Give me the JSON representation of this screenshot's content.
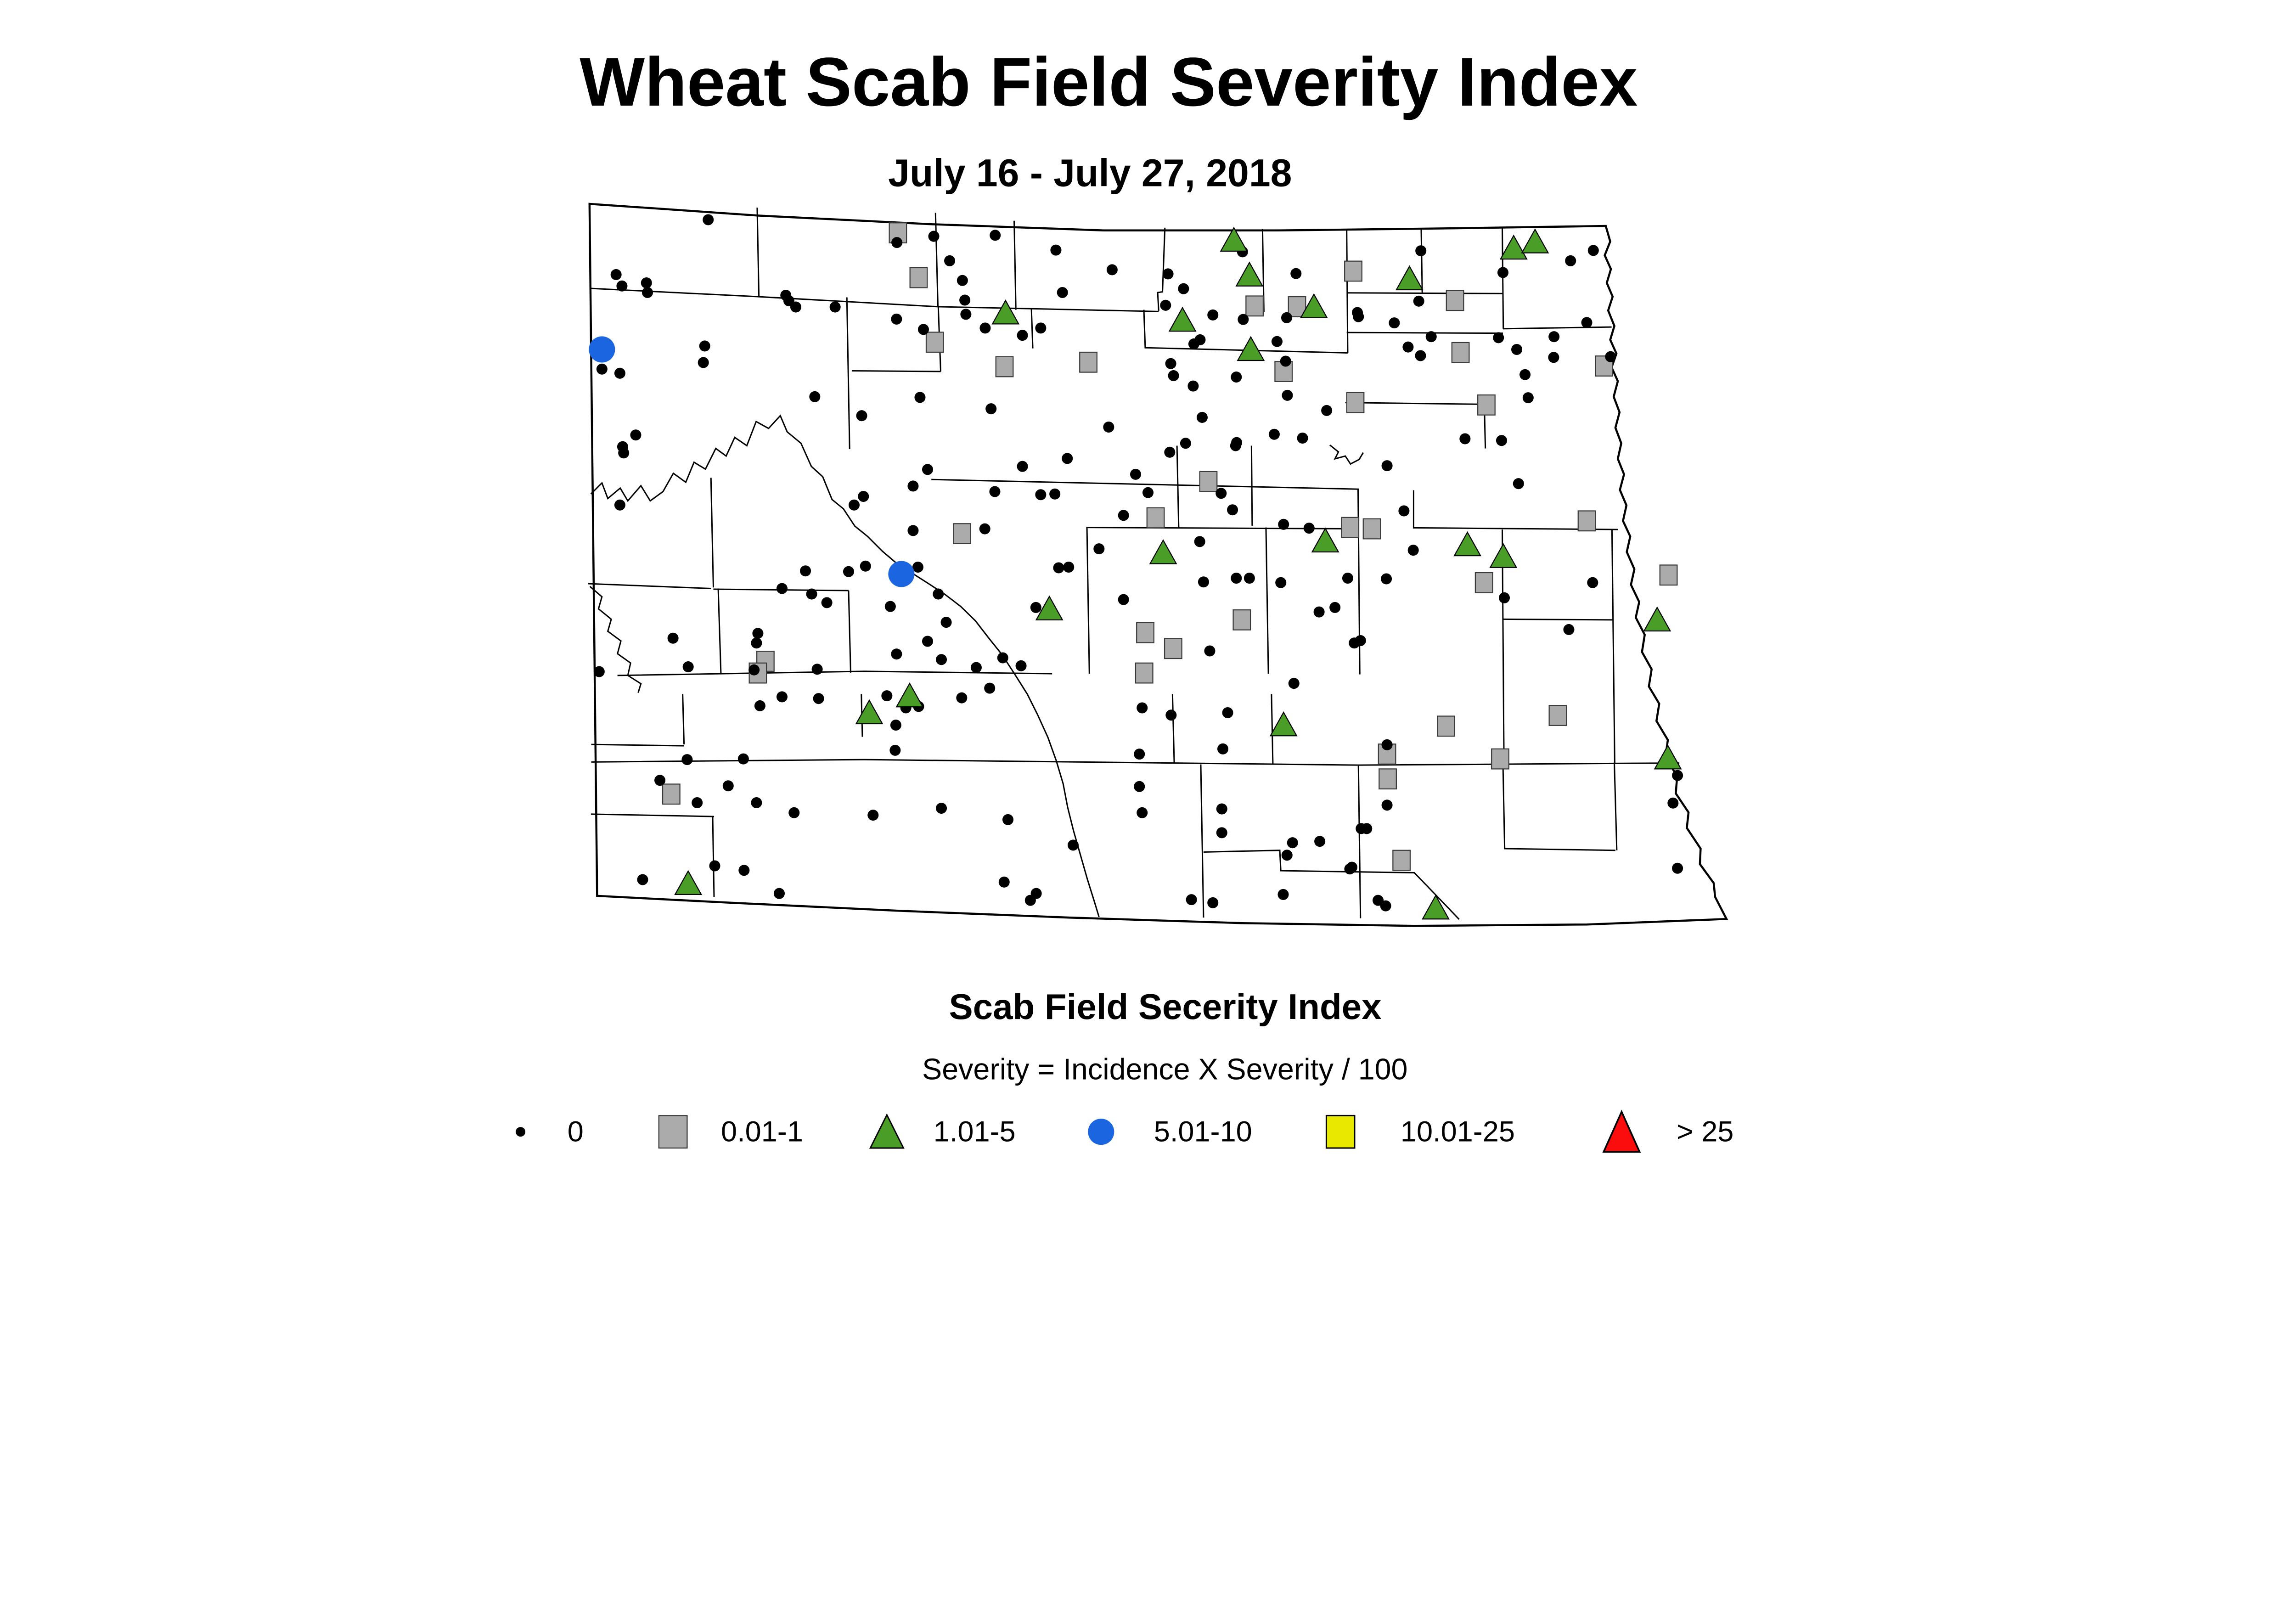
{
  "title": "Wheat Scab Field Severity Index",
  "subtitle": "July 16 - July 27, 2018",
  "legend": {
    "title": "Scab Field Secerity Index",
    "formula": "Severity = Incidence X Severity / 100",
    "items": [
      {
        "label": "0",
        "shape": "dot",
        "color": "#000000"
      },
      {
        "label": "0.01-1",
        "shape": "square",
        "color": "#ABABAB"
      },
      {
        "label": "1.01-5",
        "shape": "triangle",
        "color": "#4A9E28"
      },
      {
        "label": "5.01-10",
        "shape": "circle",
        "color": "#1B66E0"
      },
      {
        "label": "10.01-25",
        "shape": "square",
        "color": "#E8E800"
      },
      {
        "label": "> 25",
        "shape": "triangle",
        "color": "#FB0D0D"
      }
    ]
  },
  "chart_data": {
    "type": "scatter",
    "region": "North Dakota county map",
    "units": "image pixels (6656 x 3506 canvas)",
    "map_frame": {
      "x_range": [
        1709,
        5005
      ],
      "y_range": [
        591,
        2680
      ]
    },
    "series": [
      {
        "name": "0",
        "marker": "black-dot",
        "color": "#000000",
        "points": [
          [
            2053,
            637
          ],
          [
            2707,
            685
          ],
          [
            2600,
            703
          ],
          [
            2753,
            756
          ],
          [
            2790,
            813
          ],
          [
            1786,
            796
          ],
          [
            1803,
            829
          ],
          [
            1874,
            820
          ],
          [
            1877,
            848
          ],
          [
            2278,
            856
          ],
          [
            2287,
            872
          ],
          [
            2307,
            890
          ],
          [
            2421,
            890
          ],
          [
            2797,
            870
          ],
          [
            2800,
            911
          ],
          [
            2599,
            925
          ],
          [
            2677,
            955
          ],
          [
            1745,
            1070
          ],
          [
            1797,
            1082
          ],
          [
            2043,
            1003
          ],
          [
            2039,
            1051
          ],
          [
            2362,
            1150
          ],
          [
            2498,
            1205
          ],
          [
            2667,
            1152
          ],
          [
            1843,
            1261
          ],
          [
            2885,
            682
          ],
          [
            3061,
            725
          ],
          [
            3224,
            782
          ],
          [
            3386,
            794
          ],
          [
            3602,
            730
          ],
          [
            3757,
            793
          ],
          [
            3080,
            848
          ],
          [
            3431,
            837
          ],
          [
            3379,
            885
          ],
          [
            3516,
            913
          ],
          [
            3604,
            926
          ],
          [
            3730,
            921
          ],
          [
            3935,
            906
          ],
          [
            2856,
            951
          ],
          [
            2964,
            972
          ],
          [
            3017,
            951
          ],
          [
            3479,
            985
          ],
          [
            3461,
            997
          ],
          [
            3702,
            990
          ],
          [
            3727,
            1047
          ],
          [
            3394,
            1054
          ],
          [
            3402,
            1089
          ],
          [
            3459,
            1119
          ],
          [
            3584,
            1093
          ],
          [
            3732,
            1146
          ],
          [
            2873,
            1185
          ],
          [
            3485,
            1210
          ],
          [
            3214,
            1238
          ],
          [
            3846,
            1190
          ],
          [
            3694,
            1259
          ],
          [
            3776,
            1270
          ],
          [
            3437,
            1285
          ],
          [
            3585,
            1283
          ],
          [
            4119,
            727
          ],
          [
            4619,
            726
          ],
          [
            4553,
            756
          ],
          [
            4357,
            790
          ],
          [
            4113,
            873
          ],
          [
            3938,
            918
          ],
          [
            4042,
            936
          ],
          [
            4600,
            935
          ],
          [
            4149,
            976
          ],
          [
            4082,
            1006
          ],
          [
            4118,
            1031
          ],
          [
            4344,
            979
          ],
          [
            4397,
            1013
          ],
          [
            4505,
            976
          ],
          [
            4504,
            1036
          ],
          [
            4669,
            1034
          ],
          [
            4421,
            1086
          ],
          [
            4430,
            1153
          ],
          [
            4247,
            1272
          ],
          [
            4353,
            1277
          ],
          [
            1805,
            1295
          ],
          [
            1808,
            1313
          ],
          [
            1797,
            1464
          ],
          [
            2689,
            1361
          ],
          [
            2647,
            1409
          ],
          [
            2503,
            1439
          ],
          [
            2476,
            1464
          ],
          [
            2647,
            1538
          ],
          [
            2335,
            1655
          ],
          [
            2460,
            1657
          ],
          [
            2509,
            1641
          ],
          [
            2661,
            1644
          ],
          [
            2267,
            1706
          ],
          [
            2353,
            1722
          ],
          [
            2397,
            1747
          ],
          [
            2720,
            1722
          ],
          [
            2581,
            1758
          ],
          [
            2743,
            1804
          ],
          [
            1951,
            1850
          ],
          [
            2197,
            1836
          ],
          [
            2193,
            1864
          ],
          [
            2689,
            1859
          ],
          [
            2599,
            1896
          ],
          [
            2729,
            1912
          ],
          [
            1995,
            1933
          ],
          [
            2186,
            1942
          ],
          [
            2369,
            1940
          ],
          [
            1737,
            1947
          ],
          [
            3094,
            1329
          ],
          [
            2964,
            1352
          ],
          [
            3391,
            1311
          ],
          [
            3582,
            1292
          ],
          [
            3292,
            1375
          ],
          [
            3540,
            1430
          ],
          [
            3328,
            1428
          ],
          [
            2884,
            1425
          ],
          [
            3017,
            1434
          ],
          [
            3058,
            1432
          ],
          [
            3573,
            1478
          ],
          [
            3721,
            1520
          ],
          [
            3795,
            1531
          ],
          [
            2855,
            1533
          ],
          [
            3257,
            1494
          ],
          [
            3186,
            1591
          ],
          [
            3478,
            1570
          ],
          [
            3069,
            1646
          ],
          [
            3098,
            1644
          ],
          [
            3489,
            1687
          ],
          [
            3584,
            1676
          ],
          [
            3622,
            1676
          ],
          [
            3713,
            1689
          ],
          [
            3907,
            1676
          ],
          [
            3257,
            1738
          ],
          [
            3003,
            1761
          ],
          [
            3824,
            1774
          ],
          [
            3870,
            1761
          ],
          [
            3507,
            1887
          ],
          [
            3944,
            1857
          ],
          [
            3751,
            1981
          ],
          [
            2830,
            1935
          ],
          [
            2907,
            1907
          ],
          [
            2960,
            1930
          ],
          [
            2869,
            1995
          ],
          [
            4021,
            1350
          ],
          [
            4402,
            1402
          ],
          [
            4070,
            1481
          ],
          [
            4097,
            1595
          ],
          [
            4019,
            1678
          ],
          [
            4361,
            1733
          ],
          [
            4617,
            1689
          ],
          [
            4548,
            1825
          ],
          [
            3926,
            1864
          ],
          [
            2203,
            2046
          ],
          [
            2267,
            2020
          ],
          [
            2373,
            2025
          ],
          [
            2571,
            2017
          ],
          [
            2626,
            2052
          ],
          [
            2663,
            2048
          ],
          [
            2597,
            2102
          ],
          [
            2788,
            2023
          ],
          [
            2595,
            2175
          ],
          [
            1992,
            2202
          ],
          [
            2155,
            2200
          ],
          [
            1913,
            2262
          ],
          [
            2111,
            2278
          ],
          [
            2021,
            2327
          ],
          [
            2193,
            2327
          ],
          [
            2302,
            2356
          ],
          [
            2531,
            2363
          ],
          [
            2729,
            2343
          ],
          [
            2072,
            2510
          ],
          [
            2157,
            2523
          ],
          [
            1863,
            2550
          ],
          [
            2259,
            2590
          ],
          [
            3311,
            2052
          ],
          [
            3395,
            2073
          ],
          [
            3559,
            2066
          ],
          [
            3545,
            2171
          ],
          [
            3303,
            2186
          ],
          [
            3303,
            2280
          ],
          [
            3311,
            2356
          ],
          [
            3542,
            2345
          ],
          [
            2922,
            2376
          ],
          [
            3542,
            2414
          ],
          [
            3747,
            2443
          ],
          [
            3731,
            2479
          ],
          [
            3826,
            2439
          ],
          [
            3111,
            2450
          ],
          [
            3919,
            2514
          ],
          [
            2911,
            2557
          ],
          [
            3004,
            2590
          ],
          [
            2987,
            2610
          ],
          [
            3454,
            2608
          ],
          [
            3516,
            2617
          ],
          [
            3720,
            2593
          ],
          [
            4021,
            2159
          ],
          [
            4863,
            2248
          ],
          [
            4021,
            2334
          ],
          [
            4850,
            2328
          ],
          [
            3946,
            2402
          ],
          [
            3962,
            2402
          ],
          [
            3913,
            2519
          ],
          [
            4863,
            2517
          ],
          [
            3995,
            2610
          ],
          [
            4017,
            2626
          ]
        ]
      },
      {
        "name": "0.01-1",
        "marker": "gray-square",
        "color": "#ABABAB",
        "points": [
          [
            2603,
            675
          ],
          [
            2663,
            805
          ],
          [
            2710,
            992
          ],
          [
            3923,
            786
          ],
          [
            3637,
            887
          ],
          [
            3760,
            889
          ],
          [
            3721,
            1077
          ],
          [
            2912,
            1063
          ],
          [
            3155,
            1050
          ],
          [
            3929,
            1167
          ],
          [
            4218,
            871
          ],
          [
            4234,
            1022
          ],
          [
            4650,
            1061
          ],
          [
            4309,
            1174
          ],
          [
            2789,
            1547
          ],
          [
            3503,
            1396
          ],
          [
            3914,
            1529
          ],
          [
            3977,
            1533
          ],
          [
            3350,
            1501
          ],
          [
            4600,
            1510
          ],
          [
            3600,
            1797
          ],
          [
            3320,
            1834
          ],
          [
            3401,
            1880
          ],
          [
            4302,
            1689
          ],
          [
            4837,
            1667
          ],
          [
            3317,
            1951
          ],
          [
            2219,
            1917
          ],
          [
            2197,
            1951
          ],
          [
            1946,
            2302
          ],
          [
            4192,
            2105
          ],
          [
            4516,
            2074
          ],
          [
            4021,
            2186
          ],
          [
            4349,
            2200
          ],
          [
            4023,
            2258
          ],
          [
            4063,
            2494
          ]
        ]
      },
      {
        "name": "1.01-5",
        "marker": "green-triangle",
        "color": "#4A9E28",
        "points": [
          [
            3577,
            694
          ],
          [
            3622,
            795
          ],
          [
            2915,
            905
          ],
          [
            3428,
            926
          ],
          [
            3809,
            887
          ],
          [
            3626,
            1011
          ],
          [
            4388,
            717
          ],
          [
            4450,
            699
          ],
          [
            4086,
            806
          ],
          [
            3842,
            1566
          ],
          [
            3372,
            1600
          ],
          [
            3042,
            1763
          ],
          [
            4254,
            1577
          ],
          [
            4358,
            1611
          ],
          [
            4804,
            1795
          ],
          [
            2520,
            2064
          ],
          [
            2637,
            2015
          ],
          [
            3721,
            2099
          ],
          [
            4835,
            2195
          ],
          [
            1995,
            2559
          ],
          [
            4162,
            2630
          ]
        ]
      },
      {
        "name": "5.01-10",
        "marker": "blue-circle",
        "color": "#1B66E0",
        "points": [
          [
            1745,
            1013
          ],
          [
            2613,
            1664
          ]
        ]
      },
      {
        "name": "10.01-25",
        "marker": "yellow-square",
        "color": "#E8E800",
        "points": []
      },
      {
        "name": "> 25",
        "marker": "red-triangle",
        "color": "#FB0D0D",
        "points": []
      }
    ]
  }
}
